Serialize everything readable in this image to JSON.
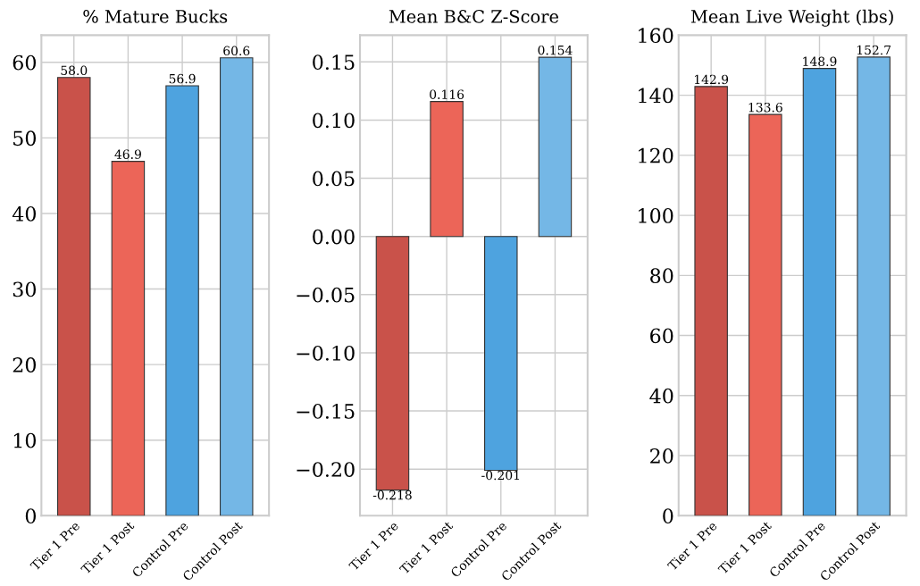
{
  "chart_data": [
    {
      "type": "bar",
      "title": "% Mature Bucks",
      "categories": [
        "Tier 1 Pre",
        "Tier 1 Post",
        "Control Pre",
        "Control Post"
      ],
      "values": [
        58.0,
        46.9,
        56.9,
        60.6
      ],
      "value_labels": [
        "58.0",
        "46.9",
        "56.9",
        "60.6"
      ],
      "colors": [
        "#c9524a",
        "#ec6558",
        "#4ea3df",
        "#74b7e6"
      ],
      "ylim": [
        0,
        63.6
      ],
      "yticks": [
        0,
        10,
        20,
        30,
        40,
        50,
        60
      ],
      "grid": true
    },
    {
      "type": "bar",
      "title": "Mean B&C Z-Score",
      "categories": [
        "Tier 1 Pre",
        "Tier 1 Post",
        "Control Pre",
        "Control Post"
      ],
      "values": [
        -0.218,
        0.116,
        -0.201,
        0.154
      ],
      "colors": [
        "#c9524a",
        "#ec6558",
        "#4ea3df",
        "#74b7e6"
      ],
      "ylim": [
        -0.24,
        0.173
      ],
      "yticks": [
        {
          "value": -0.2,
          "label": "−0.20"
        },
        {
          "value": -0.15,
          "label": "−0.15"
        },
        {
          "value": -0.1,
          "label": "−0.10"
        },
        {
          "value": -0.05,
          "label": "−0.05"
        },
        {
          "value": 0,
          "label": "0.00"
        },
        {
          "value": 0.05,
          "label": "0.05"
        },
        {
          "value": 0.1,
          "label": "0.10"
        },
        {
          "value": 0.15,
          "label": "0.15"
        }
      ],
      "grid": true,
      "data_labels": true
    },
    {
      "type": "bar",
      "title": "Mean Live Weight (lbs)",
      "categories": [
        "Tier 1 Pre",
        "Tier 1 Post",
        "Control Pre",
        "Control Post"
      ],
      "values": [
        142.9,
        133.6,
        148.9,
        152.7
      ],
      "colors": [
        "#c9524a",
        "#ec6558",
        "#4ea3df",
        "#74b7e6"
      ],
      "ylim": [
        0,
        160
      ],
      "yticks": [
        0,
        20,
        40,
        60,
        80,
        100,
        120,
        140,
        160
      ],
      "grid": true,
      "data_labels": true
    }
  ]
}
